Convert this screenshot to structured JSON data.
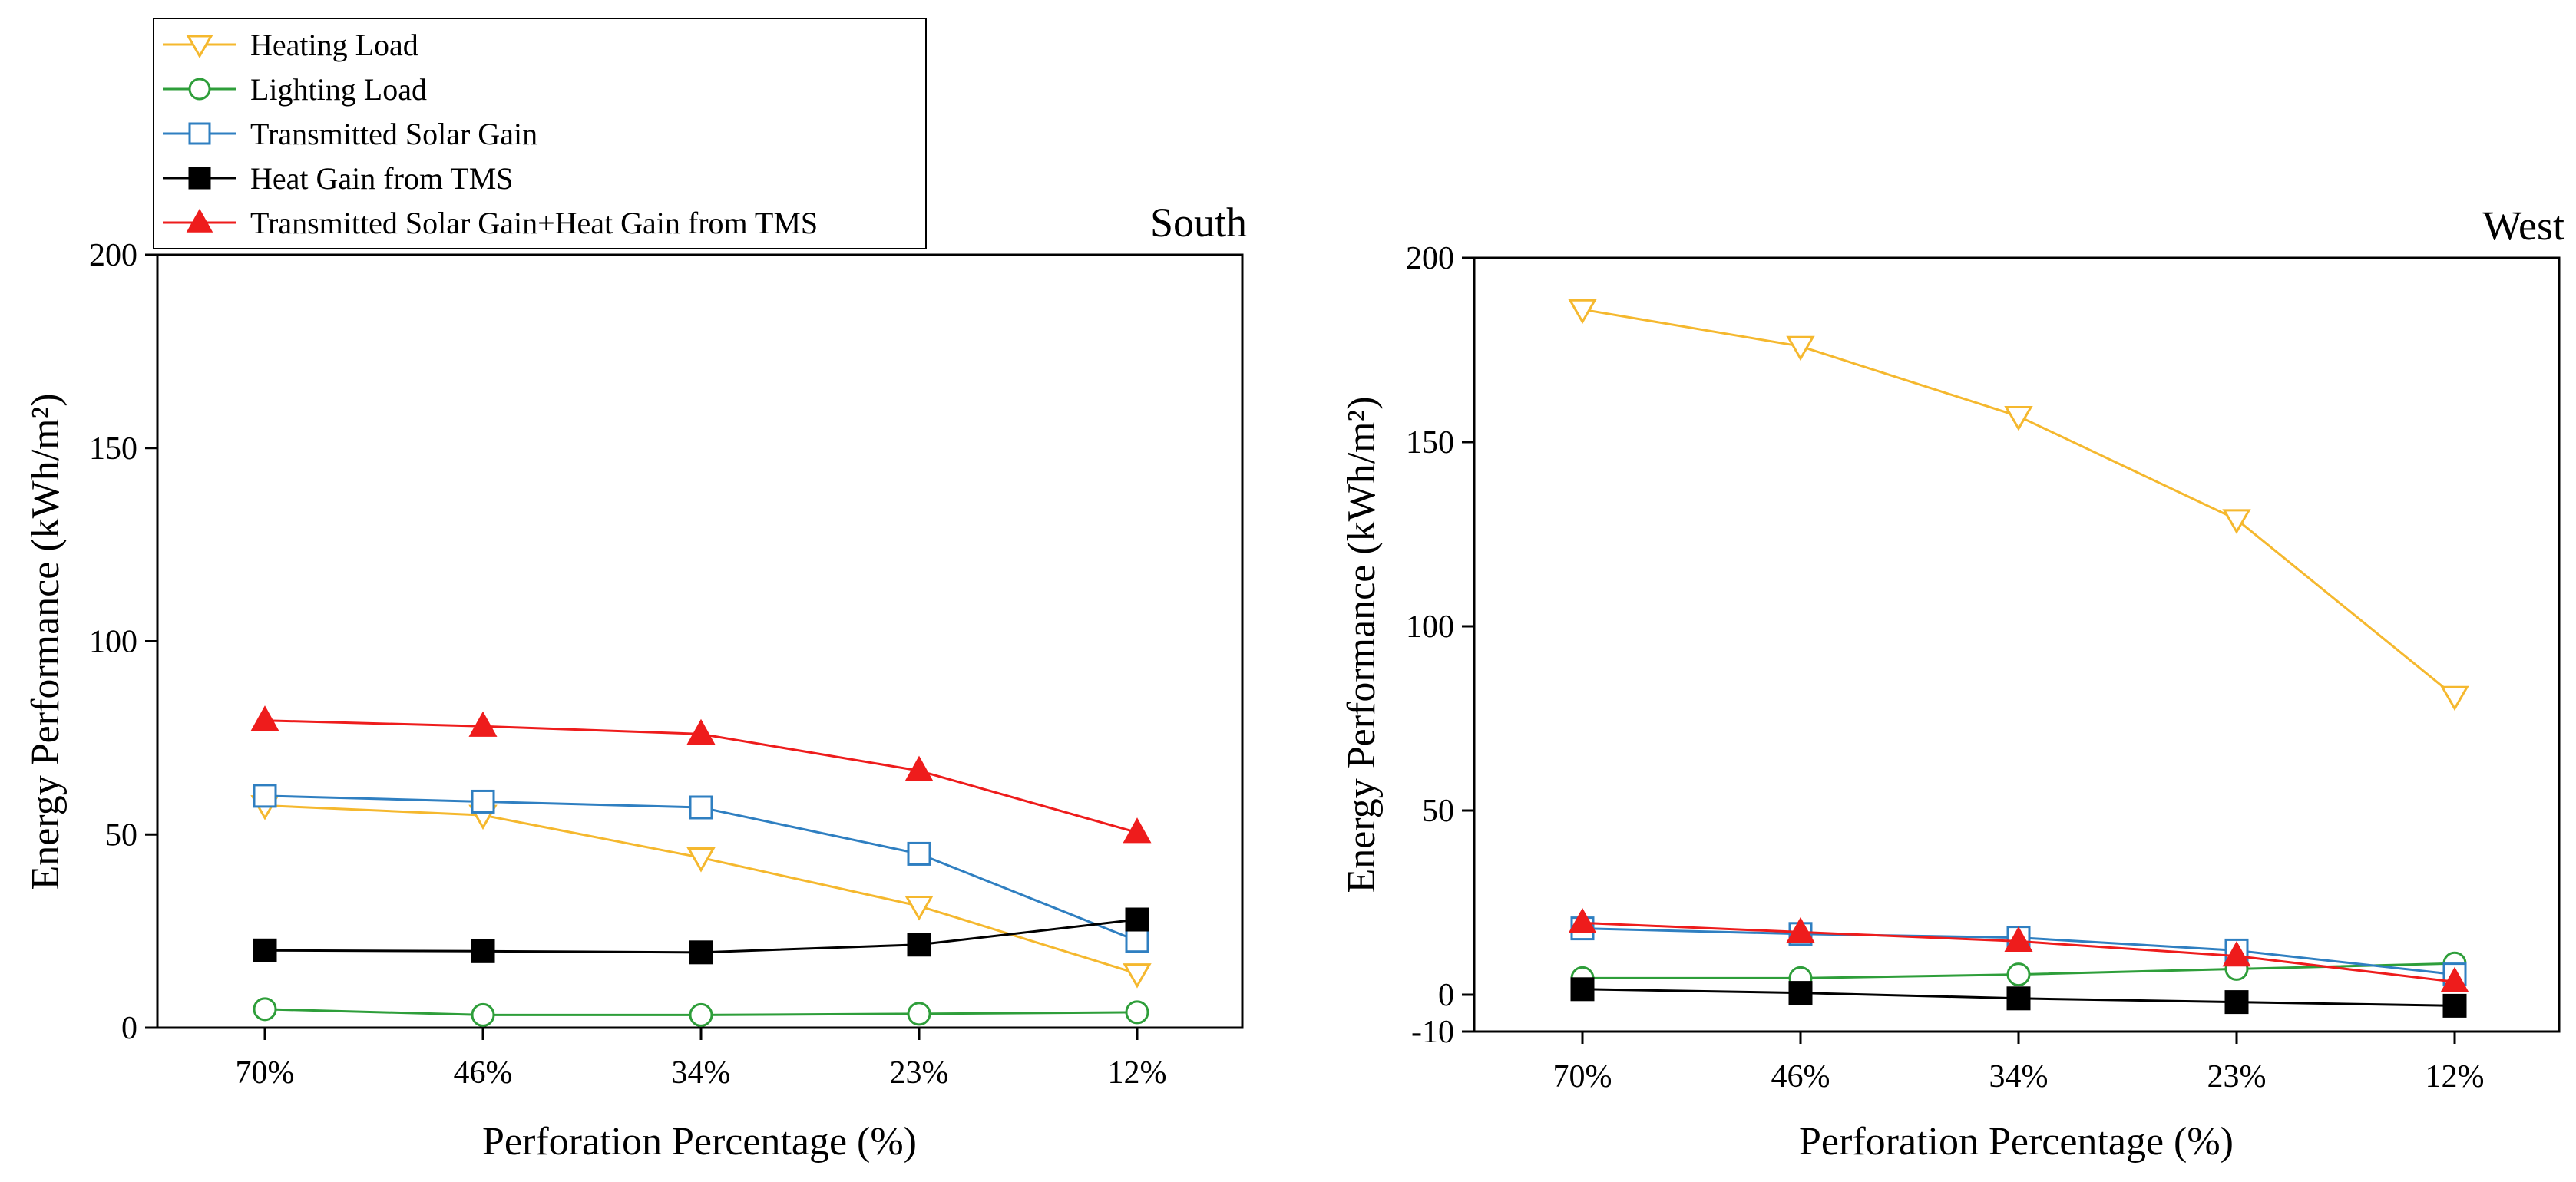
{
  "chart_data": [
    {
      "type": "line",
      "title": "South",
      "xlabel": "Perforation Percentage (%)",
      "ylabel": "Energy Performance (kWh/m²)",
      "categories": [
        "70%",
        "46%",
        "34%",
        "23%",
        "12%"
      ],
      "ylim": [
        0,
        200
      ],
      "yticks": [
        0,
        50,
        100,
        150,
        200
      ],
      "grid": false,
      "series": [
        {
          "name": "Heating Load",
          "color": "#f5b82e",
          "marker": "triangle-down-open",
          "values": [
            57.5,
            55,
            44,
            31.5,
            14
          ]
        },
        {
          "name": "Lighting Load",
          "color": "#2e9e3a",
          "marker": "circle-open",
          "values": [
            4.8,
            3.3,
            3.3,
            3.6,
            4
          ]
        },
        {
          "name": "Transmitted Solar Gain",
          "color": "#2f7fc1",
          "marker": "square-open",
          "values": [
            60,
            58.5,
            57,
            45,
            22.5
          ]
        },
        {
          "name": "Heat Gain from TMS",
          "color": "#000000",
          "marker": "square-filled",
          "values": [
            20,
            19.8,
            19.5,
            21.5,
            28
          ]
        },
        {
          "name": "Transmitted Solar Gain+Heat Gain from TMS",
          "color": "#ee1c1c",
          "marker": "triangle-up-filled",
          "values": [
            79.5,
            78,
            76,
            66.5,
            50.5
          ]
        }
      ]
    },
    {
      "type": "line",
      "title": "West",
      "xlabel": "Perforation Percentage (%)",
      "ylabel": "Energy Performance (kWh/m²)",
      "categories": [
        "70%",
        "46%",
        "34%",
        "23%",
        "12%"
      ],
      "ylim": [
        -10,
        200
      ],
      "yticks": [
        -10,
        0,
        50,
        100,
        150,
        200
      ],
      "grid": false,
      "series": [
        {
          "name": "Heating Load",
          "color": "#f5b82e",
          "marker": "triangle-down-open",
          "values": [
            186,
            176,
            157,
            129,
            81
          ]
        },
        {
          "name": "Lighting Load",
          "color": "#2e9e3a",
          "marker": "circle-open",
          "values": [
            4.5,
            4.5,
            5.5,
            7,
            8.5
          ]
        },
        {
          "name": "Transmitted Solar Gain",
          "color": "#2f7fc1",
          "marker": "square-open",
          "values": [
            18,
            16.5,
            15.5,
            12,
            5.5
          ]
        },
        {
          "name": "Heat Gain from TMS",
          "color": "#000000",
          "marker": "square-filled",
          "values": [
            1.5,
            0.5,
            -1,
            -2,
            -3
          ]
        },
        {
          "name": "Transmitted Solar Gain+Heat Gain from TMS",
          "color": "#ee1c1c",
          "marker": "triangle-up-filled",
          "values": [
            19.5,
            17,
            14.5,
            10.5,
            3.5
          ]
        }
      ]
    }
  ],
  "legend": {
    "placement": "top-left",
    "entries": [
      {
        "label": "Heating Load",
        "color": "#f5b82e",
        "marker": "triangle-down-open"
      },
      {
        "label": "Lighting Load",
        "color": "#2e9e3a",
        "marker": "circle-open"
      },
      {
        "label": "Transmitted Solar Gain",
        "color": "#2f7fc1",
        "marker": "square-open"
      },
      {
        "label": "Heat Gain from TMS",
        "color": "#000000",
        "marker": "square-filled"
      },
      {
        "label": "Transmitted Solar Gain+Heat Gain from TMS",
        "color": "#ee1c1c",
        "marker": "triangle-up-filled"
      }
    ]
  }
}
